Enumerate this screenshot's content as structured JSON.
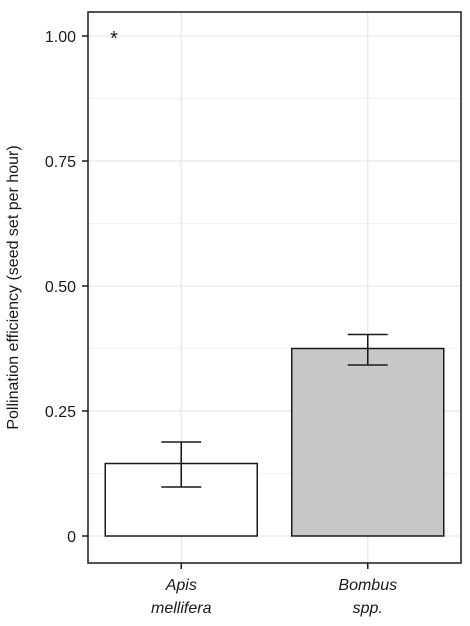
{
  "chart_data": {
    "type": "bar",
    "categories": [
      {
        "line1": "Apis",
        "line2": "mellifera"
      },
      {
        "line1": "Bombus",
        "line2": "spp."
      }
    ],
    "values": [
      0.145,
      0.375
    ],
    "error_low": [
      0.098,
      0.342
    ],
    "error_high": [
      0.188,
      0.403
    ],
    "bar_colors": [
      "#ffffff",
      "#c8c8c6"
    ],
    "ylabel": "Pollination efficiency (seed set per hour)",
    "ylim": [
      0,
      1.0
    ],
    "yticks": [
      0,
      0.25,
      0.5,
      0.75,
      1.0
    ],
    "ytick_labels": [
      "0",
      "0.25",
      "0.50",
      "0.75",
      "1.00"
    ],
    "grid": true,
    "annotation": "*"
  }
}
